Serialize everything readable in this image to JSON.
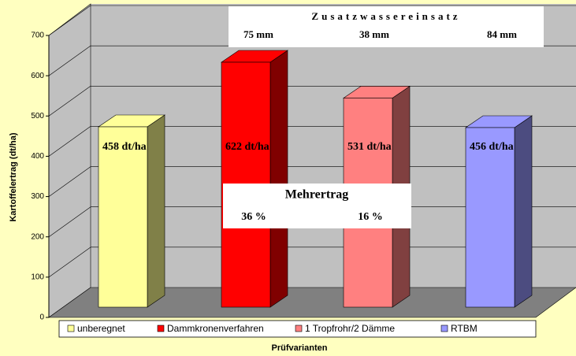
{
  "chart_data": {
    "type": "bar3d",
    "y_label": "Kartoffelertrag (dt/ha)",
    "x_label": "Prüfvarianten",
    "ylim": [
      0,
      700
    ],
    "yticks": [
      0,
      100,
      200,
      300,
      400,
      500,
      600,
      700
    ],
    "grid": true,
    "legend": "bottom",
    "series": [
      {
        "name": "unberegnet",
        "color": "#ffff99",
        "side": "#808048",
        "values": [
          458
        ],
        "value_labels": [
          "458 dt/ha"
        ]
      },
      {
        "name": "Dammkronenverfahren",
        "color": "#ff0000",
        "side": "#800000",
        "values": [
          622
        ],
        "value_labels": [
          "622 dt/ha"
        ]
      },
      {
        "name": "1 Tropfrohr/2 Dämme",
        "color": "#ff8080",
        "side": "#804040",
        "values": [
          531
        ],
        "value_labels": [
          "531 dt/ha"
        ]
      },
      {
        "name": "RTBM",
        "color": "#9999ff",
        "side": "#4c4c80",
        "values": [
          456
        ],
        "value_labels": [
          "456 dt/ha"
        ]
      }
    ],
    "annotations": {
      "water": {
        "title": "Zusatzwassereinsatz",
        "labels": [
          "75 mm",
          "38 mm",
          "84 mm"
        ]
      },
      "gain": {
        "title": "Mehrertrag",
        "labels": [
          "36 %",
          "16 %"
        ]
      }
    }
  }
}
